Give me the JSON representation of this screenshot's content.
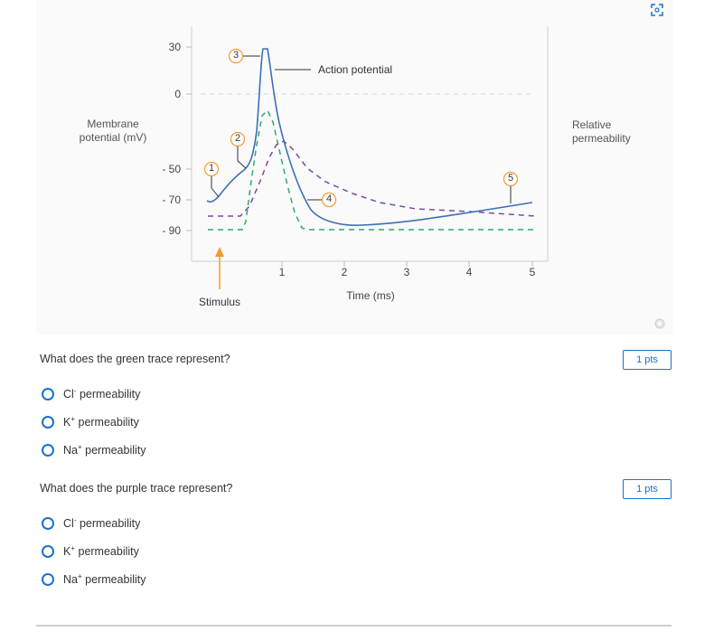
{
  "figure": {
    "y_axis_label_line1": "Membrane",
    "y_axis_label_line2": "potential (mV)",
    "right_axis_label_line1": "Relative",
    "right_axis_label_line2": "permeability",
    "y_ticks": [
      "30",
      "0",
      "- 50",
      "- 70",
      "- 90"
    ],
    "x_ticks": [
      "1",
      "2",
      "3",
      "4",
      "5"
    ],
    "x_axis_label": "Time (ms)",
    "stimulus_label": "Stimulus",
    "action_potential_label": "Action potential",
    "markers": [
      "1",
      "2",
      "3",
      "4",
      "5"
    ],
    "colors": {
      "action_potential": "#3b6fb6",
      "green_trace": "#2fa86b",
      "purple_trace": "#7b4aa0",
      "stimulus": "#f39a2f"
    }
  },
  "chart_data": {
    "type": "line",
    "xlabel": "Time (ms)",
    "ylabel": "Membrane potential (mV)",
    "y2label": "Relative permeability",
    "xlim": [
      0,
      5
    ],
    "ylim": [
      -100,
      30
    ],
    "series": [
      {
        "x": [
          0.2,
          0.4,
          0.55,
          0.7,
          0.8,
          0.9,
          1.0,
          1.1,
          1.3,
          1.7,
          2.5,
          3.5,
          4.5,
          5.0
        ],
        "y": [
          -70,
          -60,
          -55,
          -40,
          25,
          30,
          20,
          -30,
          -70,
          -85,
          -88,
          -85,
          -75,
          -70
        ]
      }
    ]
  },
  "questions": [
    {
      "text": "What does the green trace represent?",
      "points": "1 pts",
      "options": [
        {
          "base": "Cl",
          "sup": "-",
          "suffix": " permeability"
        },
        {
          "base": "K",
          "sup": "+",
          "suffix": " permeability"
        },
        {
          "base": "Na",
          "sup": "+",
          "suffix": " permeability"
        }
      ]
    },
    {
      "text": "What does the purple trace represent?",
      "points": "1 pts",
      "options": [
        {
          "base": "Cl",
          "sup": "-",
          "suffix": " permeability"
        },
        {
          "base": "K",
          "sup": "+",
          "suffix": " permeability"
        },
        {
          "base": "Na",
          "sup": "+",
          "suffix": " permeability"
        }
      ]
    }
  ]
}
